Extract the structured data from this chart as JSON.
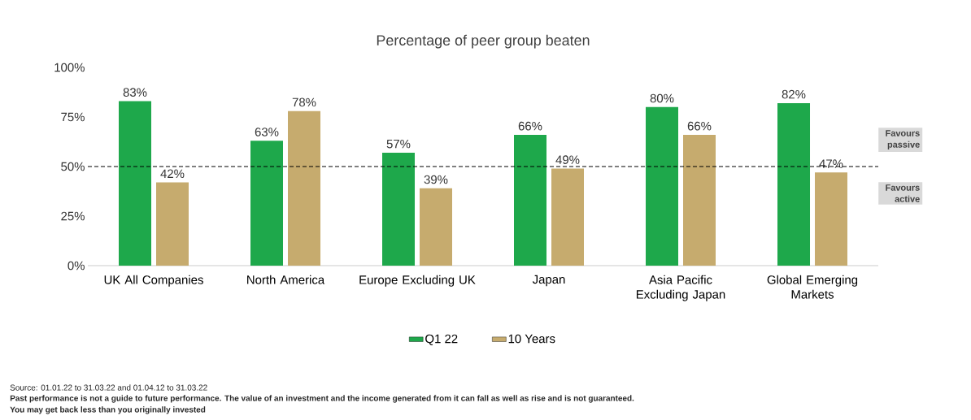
{
  "chart_data": {
    "type": "bar",
    "title": "Percentage of peer group beaten",
    "categories": [
      "UK All Companies",
      "North America",
      "Europe Excluding UK",
      "Japan",
      "Asia Pacific Excluding Japan",
      "Global Emerging Markets"
    ],
    "series": [
      {
        "name": "Q1 22",
        "color": "#1ea84b",
        "values": [
          83,
          63,
          57,
          66,
          80,
          82
        ],
        "value_labels": [
          "83%",
          "63%",
          "57%",
          "66%",
          "80%",
          "82%"
        ]
      },
      {
        "name": "10 Years",
        "color": "#c6ab6e",
        "values": [
          42,
          78,
          39,
          49,
          66,
          47
        ],
        "value_labels": [
          "42%",
          "78%",
          "39%",
          "49%",
          "66%",
          "47%"
        ]
      }
    ],
    "ylim": [
      0,
      100
    ],
    "yticks": [
      {
        "value": 0,
        "label": "0%"
      },
      {
        "value": 25,
        "label": "25%"
      },
      {
        "value": 50,
        "label": "50%"
      },
      {
        "value": 75,
        "label": "75%"
      },
      {
        "value": 100,
        "label": "100%"
      }
    ],
    "ref_lines": [
      {
        "axis": "y",
        "value": 50,
        "line_style": "dashed",
        "color": "#000000"
      }
    ],
    "legend": "bottom",
    "grid": false,
    "annotations": [
      "Favours passive",
      "Favours active",
      "Source: 01.01.22 to 31.03.22 and 01.04.12 to 31.03.22",
      "Past performance is not a guide to future performance. The value of an investment and the income generated from it can fall as well as rise and is not guaranteed.",
      "You may get back less than you originally invested"
    ]
  }
}
